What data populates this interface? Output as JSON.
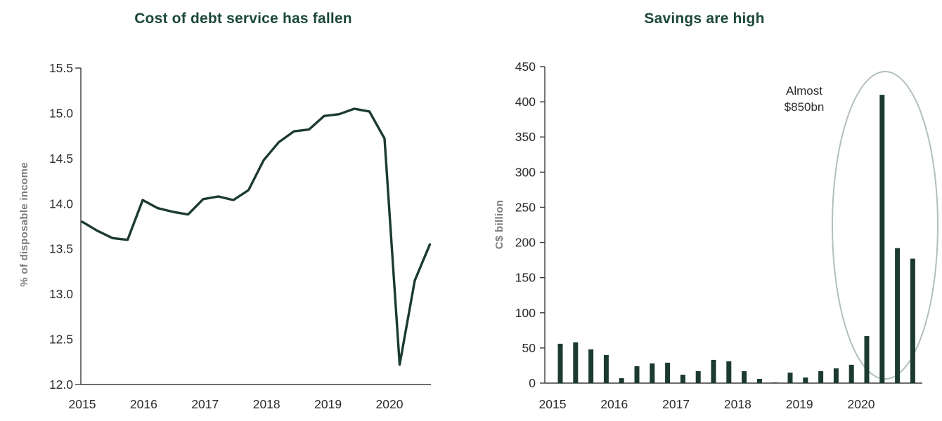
{
  "colors": {
    "title_green": "#1c4839",
    "series_green": "#1b3a31",
    "axis_line": "#3c3c3c",
    "tick_label": "#2b2b2b",
    "axis_title_gray": "#7d7d7d",
    "annotation_text": "#2b2b2b",
    "ellipse_gray_green": "#b2c0bd",
    "background": "#ffffff"
  },
  "chart_data": [
    {
      "type": "line",
      "title": "Cost of debt service has fallen",
      "ylabel": "% of disposable income",
      "frequency": "quarterly",
      "x_start_year": 2015,
      "x_tick_labels": [
        "2015",
        "2016",
        "2017",
        "2018",
        "2019",
        "2020"
      ],
      "values": [
        13.8,
        13.7,
        13.62,
        13.6,
        14.04,
        13.95,
        13.91,
        13.88,
        14.05,
        14.08,
        14.04,
        14.15,
        14.48,
        14.68,
        14.8,
        14.82,
        14.97,
        14.99,
        15.05,
        15.02,
        14.72,
        12.22,
        13.15,
        13.55
      ],
      "ylim": [
        12.0,
        15.5
      ],
      "ytick_step": 0.5,
      "ytick_decimals": 1,
      "grid": false,
      "legend": "none",
      "line_color": "#1b3a31"
    },
    {
      "type": "bar",
      "title": "Savings are high",
      "ylabel": "C$ billion",
      "frequency": "quarterly",
      "x_start_year": 2015,
      "x_tick_labels": [
        "2015",
        "2016",
        "2017",
        "2018",
        "2019",
        "2020"
      ],
      "values": [
        56,
        58,
        48,
        40,
        7,
        24,
        28,
        29,
        12,
        17,
        33,
        31,
        17,
        6,
        1,
        15,
        8,
        17,
        21,
        26,
        67,
        410,
        192,
        177
      ],
      "ylim": [
        0,
        450
      ],
      "ytick_step": 50,
      "ytick_decimals": 0,
      "grid": false,
      "legend": "none",
      "bar_color": "#1b3a31",
      "annotation": {
        "line1": "Almost",
        "line2": "$850bn"
      },
      "highlight_ellipse": true,
      "ellipse_color": "#b2c0bd"
    }
  ]
}
